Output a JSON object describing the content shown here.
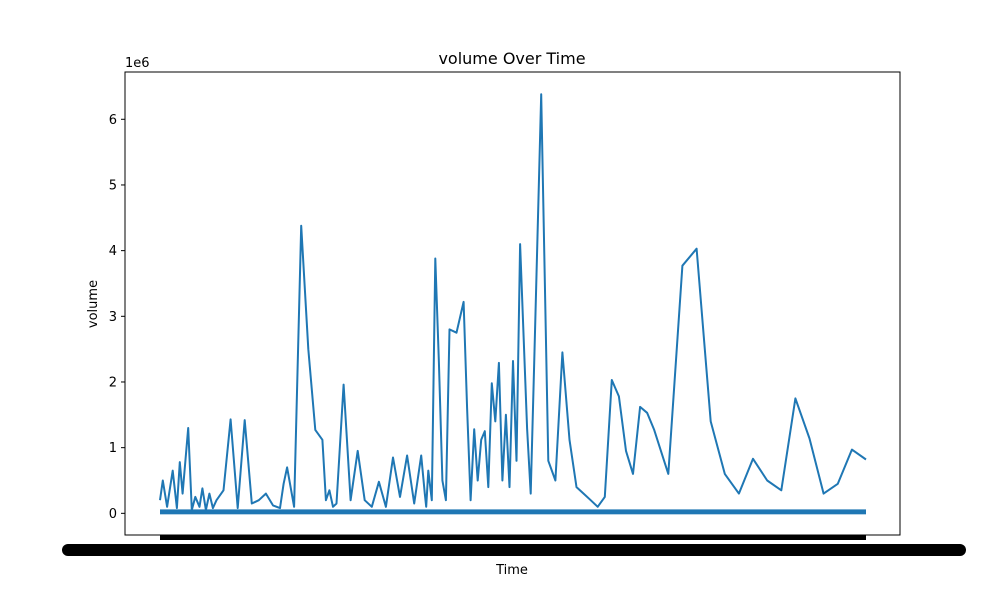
{
  "chart_data": {
    "type": "line",
    "title": "volume Over Time",
    "xlabel": "Time",
    "ylabel": "volume",
    "y_scale_note": "1e6",
    "ylim": [
      -330000,
      6720000
    ],
    "y_ticks": [
      0,
      1000000,
      2000000,
      3000000,
      4000000,
      5000000,
      6000000
    ],
    "y_tick_labels": [
      "0",
      "1",
      "2",
      "3",
      "4",
      "5",
      "6"
    ],
    "grid": false,
    "legend": "none",
    "x_tick_labels_note": "dense overlapping date tick labels rendered as an illegible black band",
    "series": [
      {
        "color": "#1f77b4",
        "x": [
          0,
          0.004,
          0.01,
          0.018,
          0.024,
          0.028,
          0.032,
          0.04,
          0.045,
          0.05,
          0.056,
          0.06,
          0.065,
          0.07,
          0.075,
          0.08,
          0.09,
          0.1,
          0.11,
          0.12,
          0.13,
          0.14,
          0.15,
          0.16,
          0.17,
          0.175,
          0.18,
          0.19,
          0.2,
          0.21,
          0.22,
          0.23,
          0.235,
          0.24,
          0.245,
          0.25,
          0.26,
          0.27,
          0.28,
          0.29,
          0.3,
          0.31,
          0.32,
          0.33,
          0.34,
          0.35,
          0.36,
          0.37,
          0.375,
          0.377,
          0.38,
          0.385,
          0.39,
          0.395,
          0.4,
          0.405,
          0.41,
          0.42,
          0.43,
          0.435,
          0.44,
          0.445,
          0.45,
          0.455,
          0.46,
          0.465,
          0.47,
          0.475,
          0.48,
          0.485,
          0.49,
          0.495,
          0.5,
          0.505,
          0.51,
          0.52,
          0.525,
          0.53,
          0.54,
          0.55,
          0.56,
          0.57,
          0.58,
          0.59,
          0.6,
          0.61,
          0.62,
          0.63,
          0.64,
          0.65,
          0.66,
          0.67,
          0.68,
          0.69,
          0.7,
          0.72,
          0.74,
          0.76,
          0.78,
          0.8,
          0.82,
          0.84,
          0.86,
          0.88,
          0.9,
          0.92,
          0.94,
          0.96,
          0.98,
          1.0
        ],
        "values": [
          200000,
          500000,
          100000,
          650000,
          80000,
          780000,
          300000,
          1300000,
          50000,
          250000,
          100000,
          380000,
          50000,
          300000,
          80000,
          200000,
          350000,
          1430000,
          80000,
          1420000,
          150000,
          200000,
          300000,
          120000,
          80000,
          450000,
          700000,
          100000,
          4380000,
          2500000,
          1270000,
          1120000,
          200000,
          350000,
          100000,
          150000,
          1960000,
          200000,
          950000,
          200000,
          100000,
          480000,
          100000,
          850000,
          250000,
          880000,
          150000,
          880000,
          300000,
          100000,
          650000,
          200000,
          3880000,
          2300000,
          500000,
          200000,
          2800000,
          2750000,
          3220000,
          1600000,
          200000,
          1280000,
          500000,
          1120000,
          1250000,
          400000,
          1980000,
          1400000,
          2290000,
          500000,
          1500000,
          400000,
          2320000,
          800000,
          4100000,
          1290000,
          300000,
          2290000,
          6380000,
          800000,
          500000,
          2450000,
          1120000,
          400000,
          300000,
          200000,
          100000,
          250000,
          2030000,
          1780000,
          950000,
          600000,
          1620000,
          1530000,
          1270000,
          600000,
          3770000,
          4030000,
          1400000,
          600000,
          300000,
          830000,
          500000,
          350000,
          1750000,
          1140000,
          300000,
          450000,
          970000,
          820000
        ]
      }
    ]
  }
}
